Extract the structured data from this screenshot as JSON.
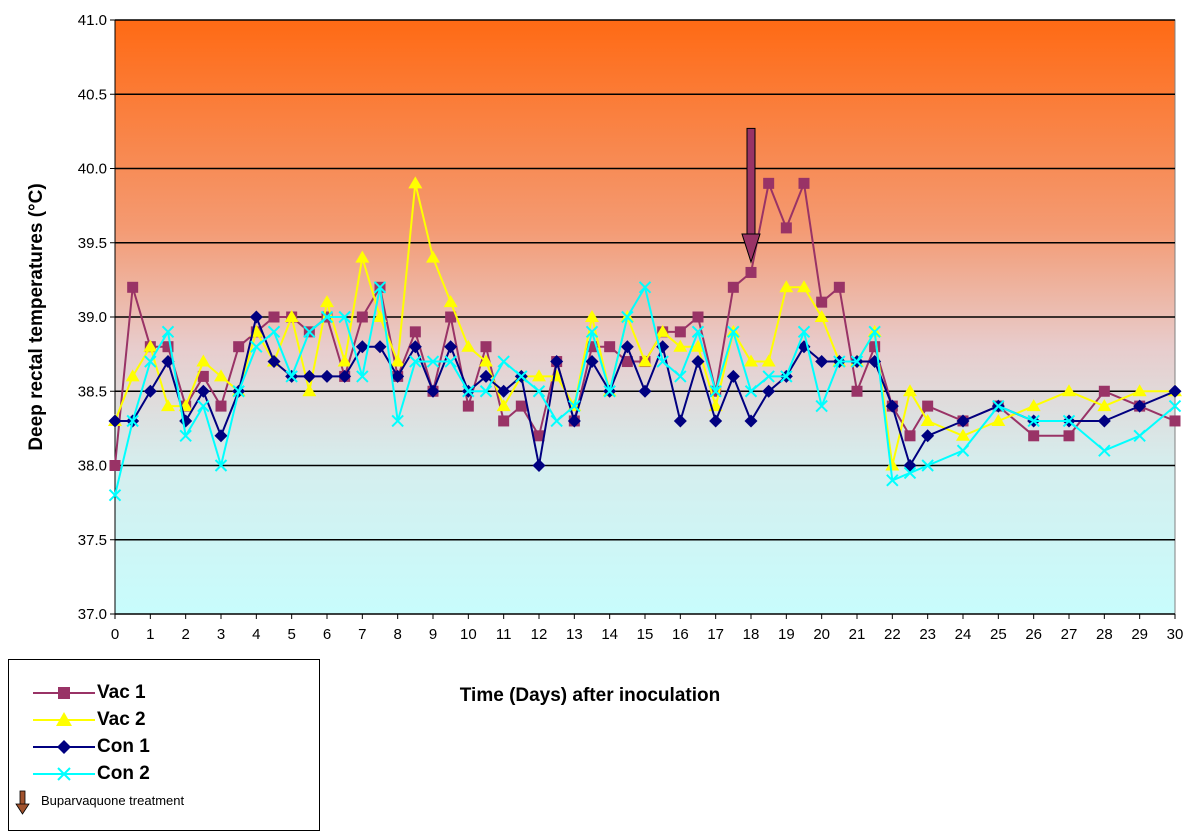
{
  "chart_data": {
    "type": "line",
    "xlabel": "Time (Days) after inoculation",
    "ylabel": "Deep rectal temperatures (°C)",
    "ylim": [
      37.0,
      41.0
    ],
    "xlim": [
      0,
      30
    ],
    "y_ticks": [
      "37.0",
      "37.5",
      "38.0",
      "38.5",
      "39.0",
      "39.5",
      "40.0",
      "40.5",
      "41.0"
    ],
    "x_ticks": [
      "0",
      "1",
      "2",
      "3",
      "4",
      "5",
      "6",
      "7",
      "8",
      "9",
      "10",
      "11",
      "12",
      "13",
      "14",
      "15",
      "16",
      "17",
      "18",
      "19",
      "20",
      "21",
      "22",
      "23",
      "24",
      "25",
      "26",
      "27",
      "28",
      "29",
      "30"
    ],
    "grid": "horizontal",
    "background": "vertical gradient orange (top) to light cyan (bottom)",
    "legend_position": "bottom-left",
    "annotation": {
      "type": "arrow",
      "x": 18,
      "from_y": 40.27,
      "to_y": 39.37,
      "label": "Buparvaquone treatment",
      "color": "#993366"
    },
    "series": [
      {
        "name": "Vac 1",
        "color": "#993366",
        "marker": "square",
        "x": [
          0,
          0.5,
          1,
          1.5,
          2,
          2.5,
          3,
          3.5,
          4,
          4.5,
          5,
          5.5,
          6,
          6.5,
          7,
          7.5,
          8,
          8.5,
          9,
          9.5,
          10,
          10.5,
          11,
          11.5,
          12,
          12.5,
          13,
          13.5,
          14,
          14.5,
          15,
          15.5,
          16,
          16.5,
          17,
          17.5,
          18,
          18.5,
          19,
          19.5,
          20,
          20.5,
          21,
          21.5,
          22,
          22.5,
          23,
          24,
          25,
          26,
          27,
          28,
          29,
          30
        ],
        "y": [
          38.0,
          39.2,
          38.8,
          38.8,
          38.4,
          38.6,
          38.4,
          38.8,
          38.9,
          39.0,
          39.0,
          38.9,
          39.0,
          38.6,
          39.0,
          39.2,
          38.6,
          38.9,
          38.5,
          39.0,
          38.4,
          38.8,
          38.3,
          38.4,
          38.2,
          38.7,
          38.3,
          38.8,
          38.8,
          38.7,
          38.7,
          38.9,
          38.9,
          39.0,
          38.5,
          39.2,
          39.3,
          39.9,
          39.6,
          39.9,
          39.1,
          39.2,
          38.5,
          38.8,
          38.4,
          38.2,
          38.4,
          38.3,
          38.4,
          38.2,
          38.2,
          38.5,
          38.4,
          38.3
        ]
      },
      {
        "name": "Vac 2",
        "color": "#ffff00",
        "marker": "triangle",
        "x": [
          0,
          0.5,
          1,
          1.5,
          2,
          2.5,
          3,
          3.5,
          4,
          4.5,
          5,
          5.5,
          6,
          6.5,
          7,
          7.5,
          8,
          8.5,
          9,
          9.5,
          10,
          10.5,
          11,
          11.5,
          12,
          12.5,
          13,
          13.5,
          14,
          14.5,
          15,
          15.5,
          16,
          16.5,
          17,
          17.5,
          18,
          18.5,
          19,
          19.5,
          20,
          20.5,
          21,
          21.5,
          22,
          22.5,
          23,
          24,
          25,
          26,
          27,
          28,
          29,
          30
        ],
        "y": [
          38.3,
          38.6,
          38.8,
          38.4,
          38.4,
          38.7,
          38.6,
          38.5,
          38.9,
          38.7,
          39.0,
          38.5,
          39.1,
          38.7,
          39.4,
          39.0,
          38.7,
          39.9,
          39.4,
          39.1,
          38.8,
          38.7,
          38.4,
          38.6,
          38.6,
          38.6,
          38.4,
          39.0,
          38.5,
          39.0,
          38.7,
          38.9,
          38.8,
          38.8,
          38.4,
          38.9,
          38.7,
          38.7,
          39.2,
          39.2,
          39.0,
          38.7,
          38.7,
          38.9,
          38.0,
          38.5,
          38.3,
          38.2,
          38.3,
          38.4,
          38.5,
          38.4,
          38.5,
          38.5
        ]
      },
      {
        "name": "Con 1",
        "color": "#000080",
        "marker": "diamond",
        "x": [
          0,
          0.5,
          1,
          1.5,
          2,
          2.5,
          3,
          3.5,
          4,
          4.5,
          5,
          5.5,
          6,
          6.5,
          7,
          7.5,
          8,
          8.5,
          9,
          9.5,
          10,
          10.5,
          11,
          11.5,
          12,
          12.5,
          13,
          13.5,
          14,
          14.5,
          15,
          15.5,
          16,
          16.5,
          17,
          17.5,
          18,
          18.5,
          19,
          19.5,
          20,
          20.5,
          21,
          21.5,
          22,
          22.5,
          23,
          24,
          25,
          26,
          27,
          28,
          29,
          30
        ],
        "y": [
          38.3,
          38.3,
          38.5,
          38.7,
          38.3,
          38.5,
          38.2,
          38.5,
          39.0,
          38.7,
          38.6,
          38.6,
          38.6,
          38.6,
          38.8,
          38.8,
          38.6,
          38.8,
          38.5,
          38.8,
          38.5,
          38.6,
          38.5,
          38.6,
          38.0,
          38.7,
          38.3,
          38.7,
          38.5,
          38.8,
          38.5,
          38.8,
          38.3,
          38.7,
          38.3,
          38.6,
          38.3,
          38.5,
          38.6,
          38.8,
          38.7,
          38.7,
          38.7,
          38.7,
          38.4,
          38.0,
          38.2,
          38.3,
          38.4,
          38.3,
          38.3,
          38.3,
          38.4,
          38.5
        ]
      },
      {
        "name": "Con 2",
        "color": "#00ffff",
        "marker": "x",
        "x": [
          0,
          0.5,
          1,
          1.5,
          2,
          2.5,
          3,
          3.5,
          4,
          4.5,
          5,
          5.5,
          6,
          6.5,
          7,
          7.5,
          8,
          8.5,
          9,
          9.5,
          10,
          10.5,
          11,
          11.5,
          12,
          12.5,
          13,
          13.5,
          14,
          14.5,
          15,
          15.5,
          16,
          16.5,
          17,
          17.5,
          18,
          18.5,
          19,
          19.5,
          20,
          20.5,
          21,
          21.5,
          22,
          22.5,
          23,
          24,
          25,
          26,
          27,
          28,
          29,
          30
        ],
        "y": [
          37.8,
          38.3,
          38.7,
          38.9,
          38.2,
          38.4,
          38.0,
          38.5,
          38.8,
          38.9,
          38.6,
          38.9,
          39.0,
          39.0,
          38.6,
          39.2,
          38.3,
          38.7,
          38.7,
          38.7,
          38.5,
          38.5,
          38.7,
          38.6,
          38.5,
          38.3,
          38.4,
          38.9,
          38.5,
          39.0,
          39.2,
          38.7,
          38.6,
          38.9,
          38.5,
          38.9,
          38.5,
          38.6,
          38.6,
          38.9,
          38.4,
          38.7,
          38.7,
          38.9,
          37.9,
          37.95,
          38.0,
          38.1,
          38.4,
          38.3,
          38.3,
          38.1,
          38.2,
          38.4
        ]
      }
    ]
  },
  "legend": {
    "items": [
      {
        "label": "Vac 1"
      },
      {
        "label": "Vac 2"
      },
      {
        "label": "Con 1"
      },
      {
        "label": "Con 2"
      }
    ],
    "note": "Buparvaquone treatment"
  }
}
